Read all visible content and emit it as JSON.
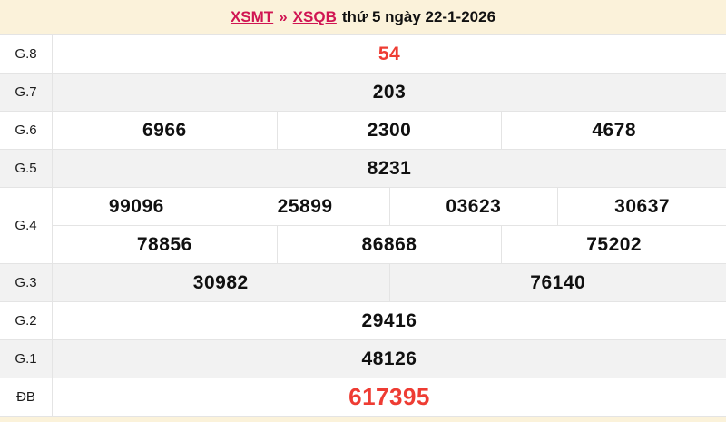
{
  "header": {
    "link_region": "XSMT",
    "separator": "»",
    "link_province": "XSQB",
    "date_text": "thứ 5 ngày 22-1-2026"
  },
  "colors": {
    "page_background": "#fbf2da",
    "link_crimson": "#d01552",
    "number_red": "#ee3c33",
    "row_alt_background": "#f2f2f2",
    "border": "#e4e4e4",
    "number_black": "#101010"
  },
  "table": {
    "rows": [
      {
        "label": "G.8",
        "values": [
          "54"
        ]
      },
      {
        "label": "G.7",
        "values": [
          "203"
        ]
      },
      {
        "label": "G.6",
        "values": [
          "6966",
          "2300",
          "4678"
        ]
      },
      {
        "label": "G.5",
        "values": [
          "8231"
        ]
      },
      {
        "label": "G.4",
        "values_line1": [
          "99096",
          "25899",
          "03623",
          "30637"
        ],
        "values_line2": [
          "78856",
          "86868",
          "75202"
        ]
      },
      {
        "label": "G.3",
        "values": [
          "30982",
          "76140"
        ]
      },
      {
        "label": "G.2",
        "values": [
          "29416"
        ]
      },
      {
        "label": "G.1",
        "values": [
          "48126"
        ]
      },
      {
        "label": "ĐB",
        "values": [
          "617395"
        ]
      }
    ]
  }
}
